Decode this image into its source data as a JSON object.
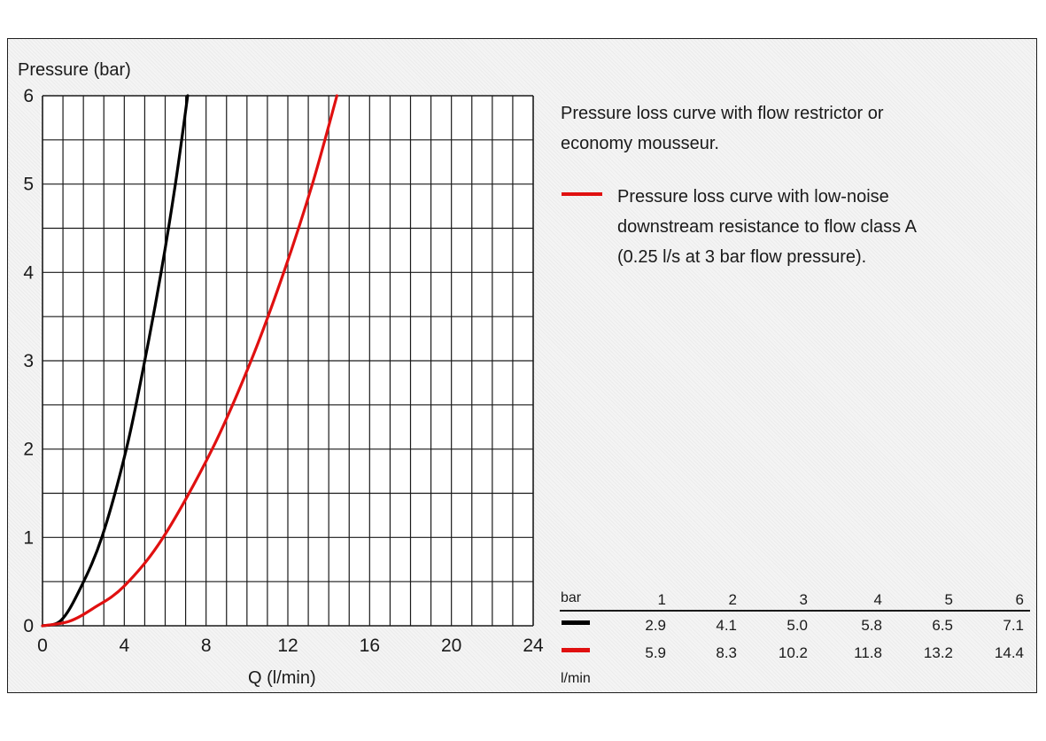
{
  "chart_data": {
    "type": "line",
    "ylabel": "Pressure (bar)",
    "xlabel": "Q (l/min)",
    "xlim": [
      0,
      24
    ],
    "ylim": [
      0,
      6
    ],
    "x_ticks": [
      0,
      4,
      8,
      12,
      16,
      20,
      24
    ],
    "y_ticks": [
      0,
      1,
      2,
      3,
      4,
      5,
      6
    ],
    "grid": true,
    "series": [
      {
        "color": "#000000",
        "description": "Pressure loss curve with flow restrictor or economy mousseur.",
        "points": [
          [
            0,
            0
          ],
          [
            0.9,
            0.06
          ],
          [
            1.8,
            0.4
          ],
          [
            2.9,
            1.0
          ],
          [
            4.1,
            2.0
          ],
          [
            5.0,
            3.0
          ],
          [
            5.8,
            4.0
          ],
          [
            6.5,
            5.0
          ],
          [
            7.1,
            6.0
          ]
        ]
      },
      {
        "color": "#e01010",
        "description": "Pressure loss curve with low-noise downstream resistance to flow class A (0.25 l/s at 3 bar flow pressure).",
        "points": [
          [
            0,
            0
          ],
          [
            1.3,
            0.05
          ],
          [
            2.5,
            0.2
          ],
          [
            4.0,
            0.45
          ],
          [
            5.9,
            1.0
          ],
          [
            8.3,
            2.0
          ],
          [
            10.2,
            3.0
          ],
          [
            11.8,
            4.0
          ],
          [
            13.2,
            5.0
          ],
          [
            14.4,
            6.0
          ]
        ]
      }
    ],
    "table": {
      "header_label": "bar",
      "unit_label": "l/min",
      "columns": [
        "1",
        "2",
        "3",
        "4",
        "5",
        "6"
      ],
      "rows": [
        {
          "color": "#000000",
          "values": [
            "2.9",
            "4.1",
            "5.0",
            "5.8",
            "6.5",
            "7.1"
          ]
        },
        {
          "color": "#e01010",
          "values": [
            "5.9",
            "8.3",
            "10.2",
            "11.8",
            "13.2",
            "14.4"
          ]
        }
      ]
    }
  },
  "legend": {
    "black_text_line1": "Pressure loss curve with flow restrictor or",
    "black_text_line2": "economy mousseur.",
    "red_text_line1": "Pressure loss curve with low-noise",
    "red_text_line2": "downstream resistance to flow class A",
    "red_text_line3": "(0.25 l/s at 3 bar flow pressure)."
  }
}
